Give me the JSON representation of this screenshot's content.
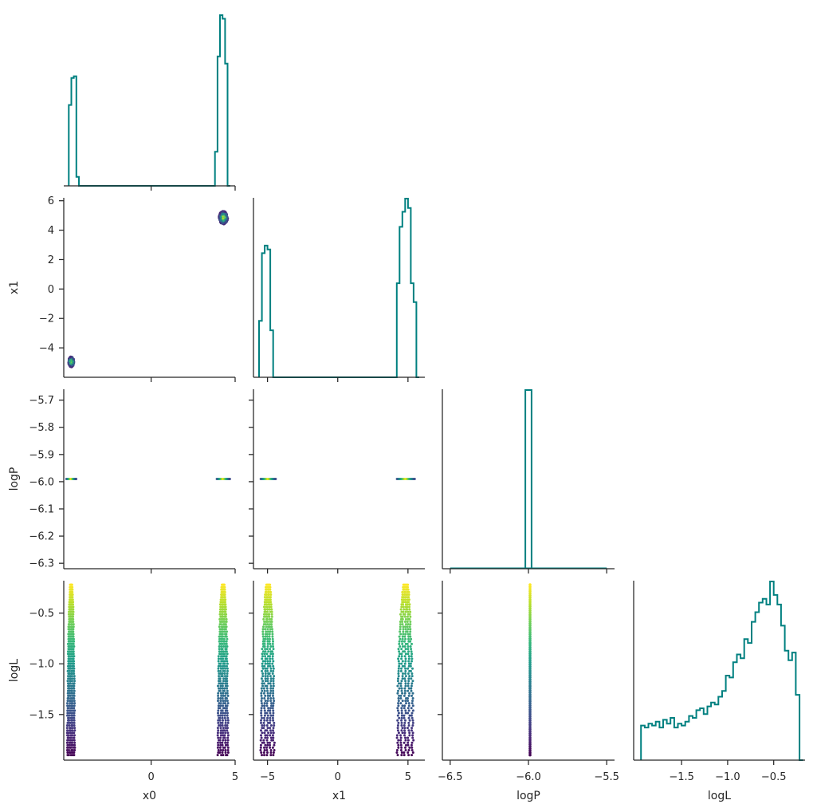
{
  "chart_data": {
    "type": "corner",
    "variables": [
      "x0",
      "x1",
      "logP",
      "logL"
    ],
    "colors": {
      "hist": "#008080",
      "axis": "#262626",
      "colormap": "viridis"
    },
    "ranges": {
      "x0": [
        -5.2,
        5.0
      ],
      "x1": [
        -6.0,
        6.2
      ],
      "logP": [
        -6.55,
        -5.45
      ],
      "logL": [
        -2.02,
        -0.16
      ]
    },
    "logP_y_range": [
      -6.32,
      -5.66
    ],
    "logL_y_range": [
      -1.95,
      -0.18
    ],
    "ticks": {
      "x0": {
        "values": [
          0,
          5
        ],
        "labels": [
          "0",
          "5"
        ]
      },
      "x1": {
        "values": [
          -5,
          0,
          5
        ],
        "labels": [
          "−5",
          "0",
          "5"
        ]
      },
      "logP": {
        "values": [
          -6.5,
          -6.0,
          -5.5
        ],
        "labels": [
          "−6.5",
          "−6.0",
          "−5.5"
        ]
      },
      "logL": {
        "values": [
          -1.5,
          -1.0,
          -0.5
        ],
        "labels": [
          "−1.5",
          "−1.0",
          "−0.5"
        ]
      },
      "x1_y": {
        "values": [
          -4,
          -2,
          0,
          2,
          4,
          6
        ],
        "labels": [
          "−4",
          "−2",
          "0",
          "2",
          "4",
          "6"
        ]
      },
      "logP_y": {
        "values": [
          -6.3,
          -6.2,
          -6.1,
          -6.0,
          -5.9,
          -5.8,
          -5.7
        ],
        "labels": [
          "−6.3",
          "−6.2",
          "−6.1",
          "−6.0",
          "−5.9",
          "−5.8",
          "−5.7"
        ]
      },
      "logL_y": {
        "values": [
          -1.5,
          -1.0,
          -0.5
        ],
        "labels": [
          "−1.5",
          "−1.0",
          "−0.5"
        ]
      }
    },
    "axis_labels": {
      "x0": "x0",
      "x1": "x1",
      "logP": "logP",
      "logL": "logL"
    },
    "hist_x0": {
      "edges": [
        -4.9,
        -4.75,
        -4.6,
        -4.45,
        -4.3,
        -4.15,
        3.8,
        3.95,
        4.1,
        4.25,
        4.4,
        4.55,
        4.7
      ],
      "counts": [
        0.45,
        0.6,
        0.61,
        0.05,
        0,
        0,
        0.19,
        0.72,
        0.95,
        0.93,
        0.68,
        0
      ]
    },
    "hist_x1": {
      "edges": [
        -5.6,
        -5.4,
        -5.2,
        -5.0,
        -4.8,
        -4.6,
        -4.4,
        4.2,
        4.4,
        4.6,
        4.8,
        5.0,
        5.2,
        5.4,
        5.6,
        5.8
      ],
      "counts": [
        0.3,
        0.66,
        0.7,
        0.68,
        0.25,
        0,
        0,
        0.5,
        0.8,
        0.88,
        0.95,
        0.9,
        0.5,
        0.4,
        0
      ],
      "counts_note": ""
    },
    "hist_logP": {
      "edges": [
        -6.02,
        -5.98
      ],
      "counts": [
        1.0
      ]
    },
    "hist_logL": {
      "edges": [
        -1.94,
        -1.9,
        -1.86,
        -1.82,
        -1.78,
        -1.74,
        -1.7,
        -1.66,
        -1.62,
        -1.58,
        -1.54,
        -1.5,
        -1.46,
        -1.42,
        -1.38,
        -1.34,
        -1.3,
        -1.26,
        -1.22,
        -1.18,
        -1.14,
        -1.1,
        -1.06,
        -1.02,
        -0.98,
        -0.94,
        -0.9,
        -0.86,
        -0.82,
        -0.78,
        -0.74,
        -0.7,
        -0.66,
        -0.62,
        -0.58,
        -0.54,
        -0.5,
        -0.46,
        -0.42,
        -0.38,
        -0.34,
        -0.3,
        -0.26,
        -0.22,
        -0.18
      ],
      "counts": [
        0.18,
        0.17,
        0.19,
        0.18,
        0.2,
        0.17,
        0.21,
        0.19,
        0.22,
        0.17,
        0.19,
        0.18,
        0.2,
        0.23,
        0.22,
        0.26,
        0.27,
        0.24,
        0.28,
        0.3,
        0.29,
        0.33,
        0.36,
        0.44,
        0.43,
        0.51,
        0.55,
        0.53,
        0.63,
        0.61,
        0.72,
        0.77,
        0.82,
        0.84,
        0.81,
        0.93,
        0.86,
        0.81,
        0.7,
        0.57,
        0.52,
        0.56,
        0.34,
        0
      ]
    },
    "modes": [
      {
        "x0": -4.75,
        "x1": -4.95,
        "x0_halfwidth": 0.2,
        "x1_halfwidth": 0.4
      },
      {
        "x0": 4.3,
        "x1": 4.85,
        "x0_halfwidth": 0.3,
        "x1_halfwidth": 0.5
      }
    ],
    "logP_value": -5.99,
    "logL_min": -1.9,
    "logL_max": -0.22
  }
}
